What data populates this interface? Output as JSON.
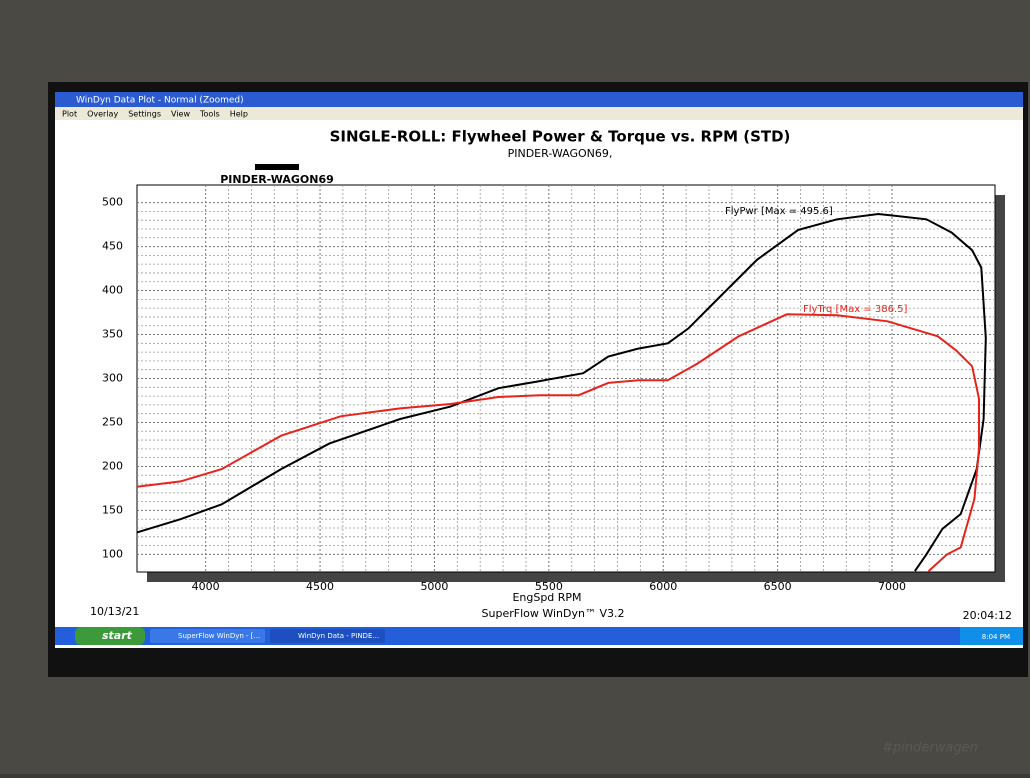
{
  "window": {
    "title": "WinDyn Data Plot - Normal  (Zoomed)",
    "menu": [
      "Plot",
      "Overlay",
      "Settings",
      "View",
      "Tools",
      "Help"
    ]
  },
  "chart_data": {
    "type": "line",
    "title": "SINGLE-ROLL: Flywheel Power & Torque vs. RPM (STD)",
    "subtitle": "PINDER-WAGON69,",
    "legend_label": "PINDER-WAGON69",
    "x_label": "EngSpd RPM",
    "xlim": [
      3700,
      7450
    ],
    "ylim": [
      80,
      520
    ],
    "xticks": [
      4000,
      4500,
      5000,
      5500,
      6000,
      6500,
      7000
    ],
    "yticks": [
      100,
      150,
      200,
      250,
      300,
      350,
      400,
      450,
      500
    ],
    "grid": true,
    "series": [
      {
        "name": "FlyPwr [Max = 495.6]",
        "color": "#000000",
        "x": [
          3700,
          3890,
          4070,
          4330,
          4540,
          4850,
          5070,
          5280,
          5460,
          5650,
          5760,
          5890,
          6020,
          6110,
          6240,
          6410,
          6590,
          6760,
          6940,
          7150,
          7260,
          7350,
          7390,
          7410,
          7400,
          7370,
          7300,
          7220,
          7150,
          7100
        ],
        "values": [
          125,
          140,
          157,
          197,
          226,
          254,
          268,
          289,
          297,
          306,
          325,
          334,
          340,
          357,
          391,
          435,
          469,
          481,
          487,
          481,
          466,
          446,
          426,
          346,
          254,
          197,
          146,
          129,
          100,
          81
        ]
      },
      {
        "name": "FlyTrq [Max = 386.5]",
        "color": "#e8231c",
        "x": [
          3700,
          3890,
          4070,
          4330,
          4590,
          4850,
          5070,
          5280,
          5460,
          5630,
          5760,
          5890,
          6020,
          6150,
          6330,
          6540,
          6760,
          6980,
          7200,
          7280,
          7350,
          7380,
          7380,
          7360,
          7300,
          7240,
          7160
        ],
        "values": [
          177,
          183,
          197,
          235,
          257,
          266,
          271,
          279,
          281,
          281,
          295,
          298,
          298,
          317,
          348,
          373,
          372,
          365,
          348,
          332,
          314,
          277,
          220,
          163,
          108,
          100,
          81
        ]
      }
    ]
  },
  "footer": {
    "date": "10/13/21",
    "app": "SuperFlow WinDyn™ V3.2",
    "time": "20:04:12"
  },
  "taskbar": {
    "start": "start",
    "items": [
      "SuperFlow WinDyn - [...",
      "WinDyn Data - PINDE..."
    ],
    "clock": "8:04 PM"
  },
  "watermark": "#pinderwagen"
}
